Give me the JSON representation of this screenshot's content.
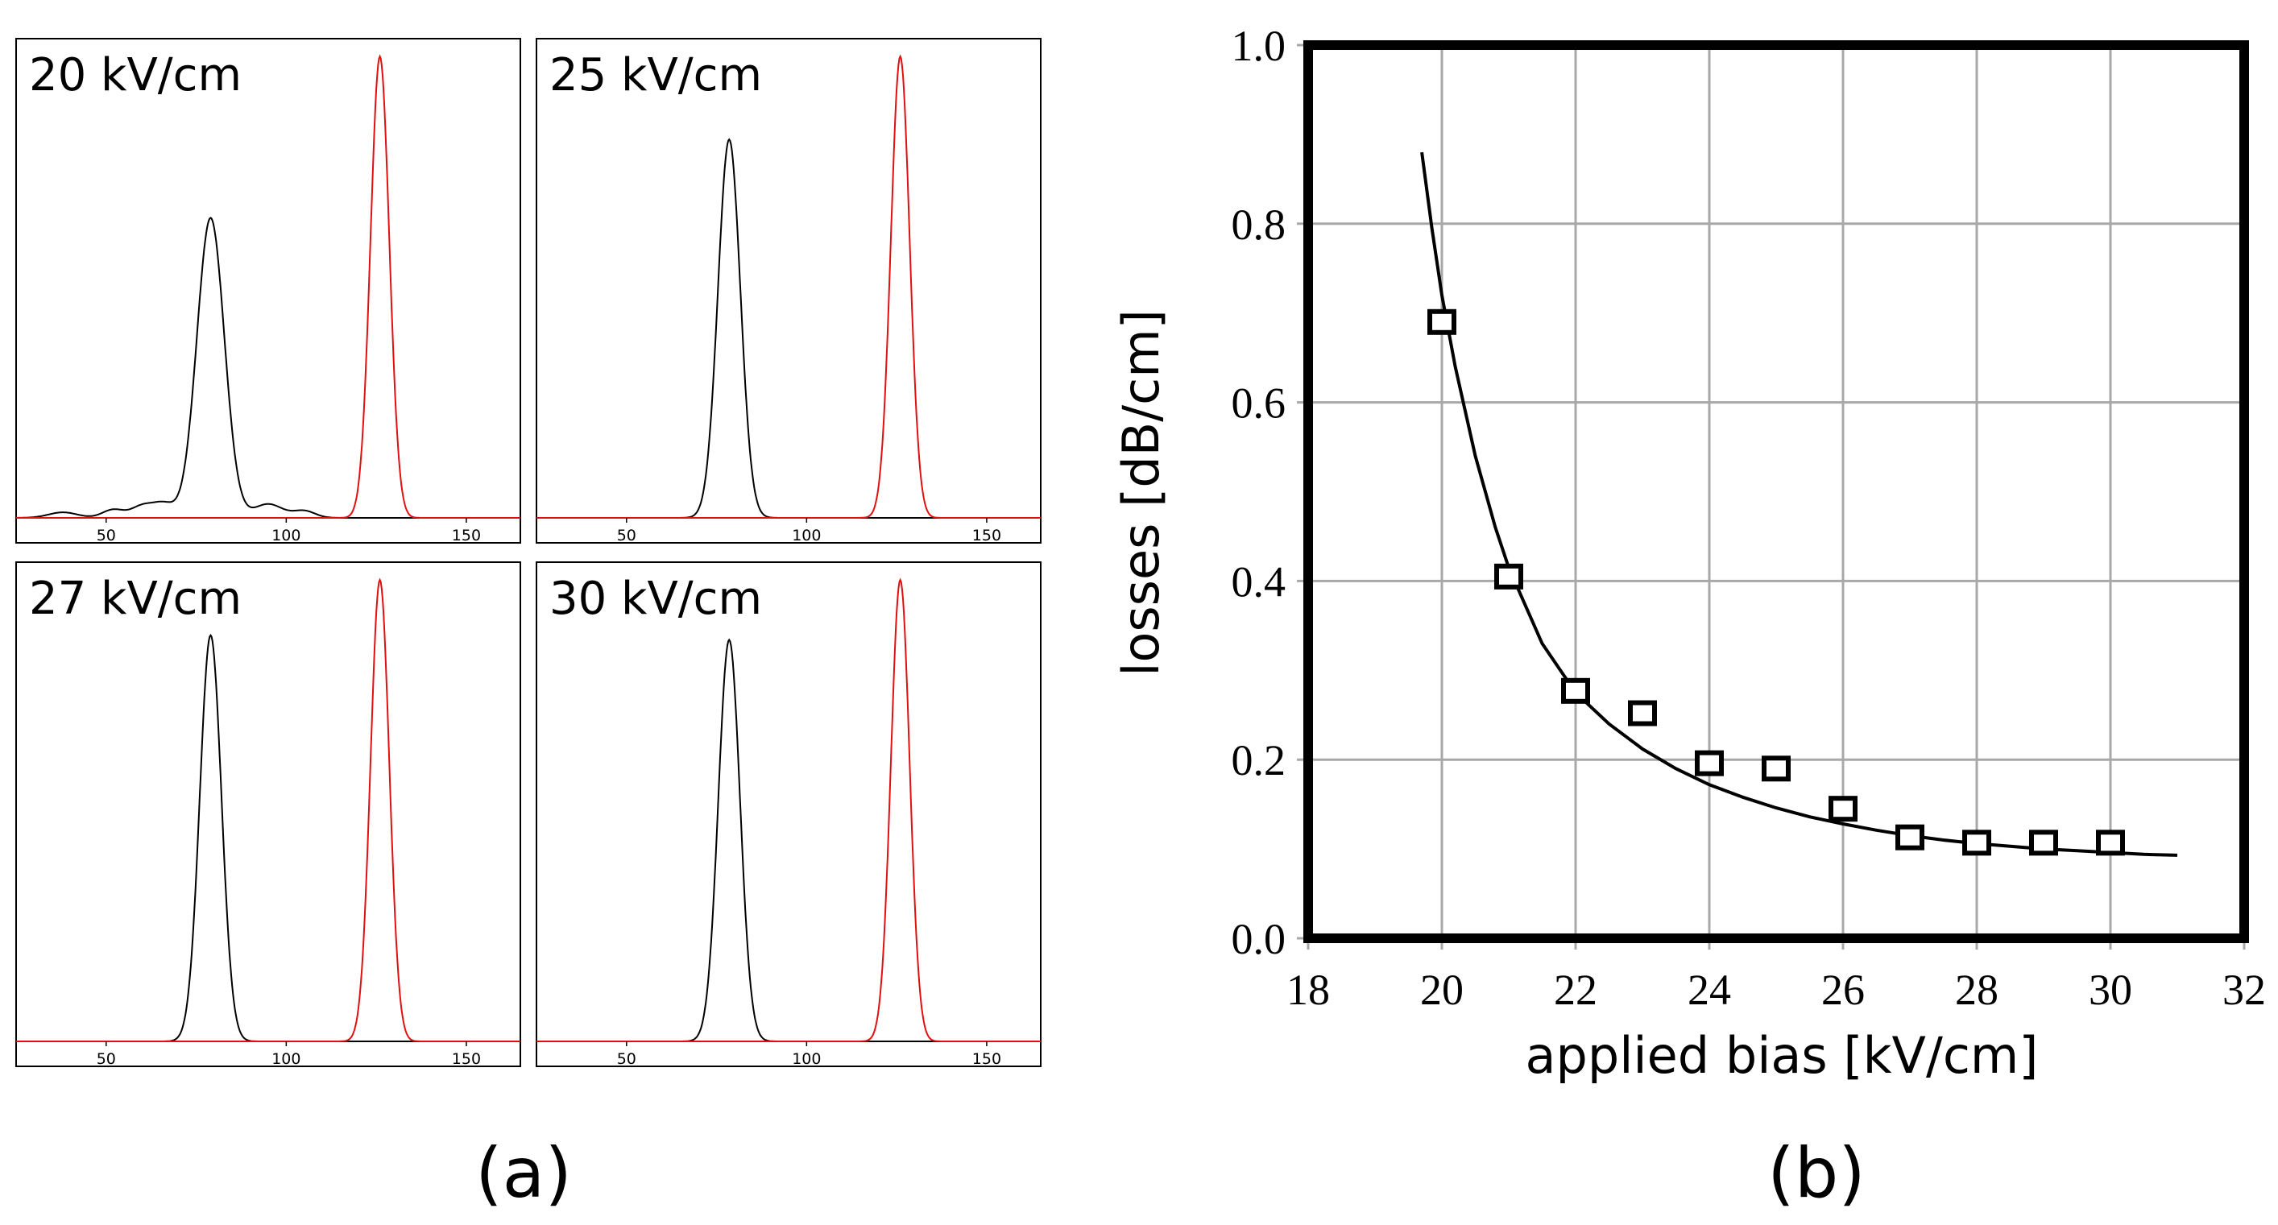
{
  "chart_data": [
    {
      "id": "a",
      "type": "line",
      "caption": "(a)",
      "x_range": [
        25,
        165
      ],
      "x_ticks": [
        50,
        100,
        150
      ],
      "panels": [
        {
          "label": "20 kV/cm",
          "series": [
            {
              "name": "black peak",
              "color": "#000000",
              "center": 79,
              "height": 0.65,
              "width": 3.8,
              "noise": true
            },
            {
              "name": "red peak",
              "color": "#e01010",
              "center": 126,
              "height": 1.0,
              "width": 2.6
            }
          ]
        },
        {
          "label": "25 kV/cm",
          "series": [
            {
              "name": "black peak",
              "color": "#000000",
              "center": 78.5,
              "height": 0.82,
              "width": 3.1
            },
            {
              "name": "red peak",
              "color": "#e01010",
              "center": 126,
              "height": 1.0,
              "width": 2.6
            }
          ]
        },
        {
          "label": "27 kV/cm",
          "series": [
            {
              "name": "black peak",
              "color": "#000000",
              "center": 79,
              "height": 0.88,
              "width": 3.0
            },
            {
              "name": "red peak",
              "color": "#e01010",
              "center": 126,
              "height": 1.0,
              "width": 2.6
            }
          ]
        },
        {
          "label": "30 kV/cm",
          "series": [
            {
              "name": "black peak",
              "color": "#000000",
              "center": 78.5,
              "height": 0.87,
              "width": 3.0
            },
            {
              "name": "red peak",
              "color": "#e01010",
              "center": 126,
              "height": 1.0,
              "width": 2.6
            }
          ]
        }
      ]
    },
    {
      "id": "b",
      "type": "scatter",
      "caption": "(b)",
      "xlabel": "applied bias [kV/cm]",
      "ylabel": "losses [dB/cm]",
      "xlim": [
        18,
        32
      ],
      "ylim": [
        0.0,
        1.0
      ],
      "x_ticks": [
        18,
        20,
        22,
        24,
        26,
        28,
        30,
        32
      ],
      "y_ticks": [
        "0.0",
        "0.2",
        "0.4",
        "0.6",
        "0.8",
        "1.0"
      ],
      "grid": true,
      "points": {
        "x": [
          20,
          21,
          22,
          23,
          24,
          25,
          26,
          27,
          28,
          29,
          30
        ],
        "y": [
          0.69,
          0.405,
          0.277,
          0.252,
          0.196,
          0.19,
          0.145,
          0.113,
          0.107,
          0.107,
          0.107
        ]
      },
      "fit": {
        "x": [
          19.7,
          19.85,
          20.0,
          20.2,
          20.5,
          20.8,
          21.0,
          21.5,
          22.0,
          22.5,
          23.0,
          23.5,
          24.0,
          24.5,
          25.0,
          25.5,
          26.0,
          26.5,
          27.0,
          27.5,
          28.0,
          28.5,
          29.0,
          29.5,
          30.0,
          30.5,
          31.0
        ],
        "y": [
          0.88,
          0.795,
          0.72,
          0.64,
          0.54,
          0.46,
          0.415,
          0.33,
          0.275,
          0.24,
          0.212,
          0.19,
          0.172,
          0.158,
          0.146,
          0.136,
          0.128,
          0.121,
          0.115,
          0.11,
          0.106,
          0.103,
          0.1,
          0.098,
          0.096,
          0.094,
          0.093
        ]
      }
    }
  ]
}
